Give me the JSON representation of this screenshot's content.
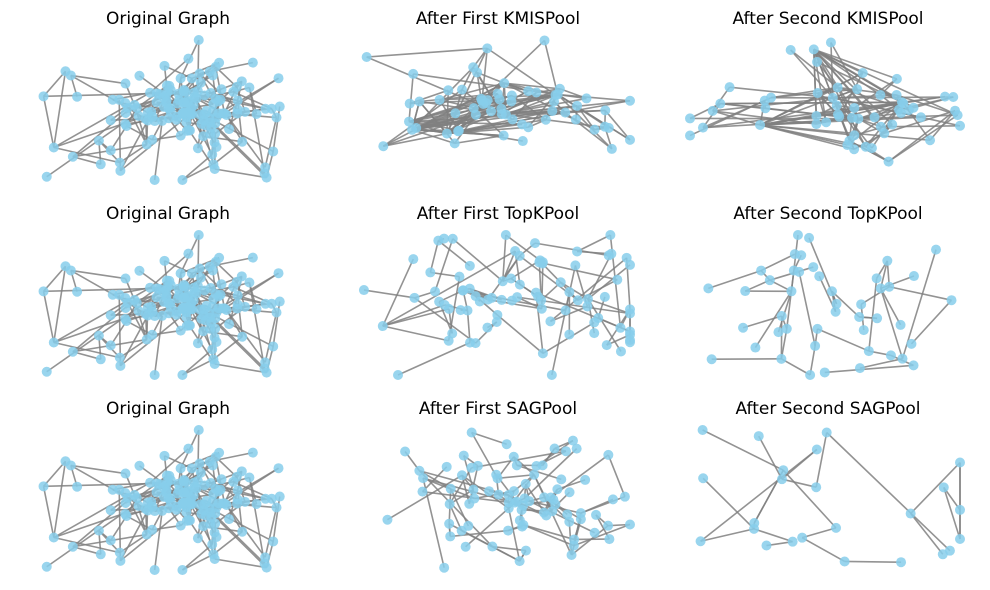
{
  "panels": [
    {
      "title": "Original Graph"
    },
    {
      "title": "After First KMISPool"
    },
    {
      "title": "After Second KMISPool"
    },
    {
      "title": "Original Graph"
    },
    {
      "title": "After First TopKPool"
    },
    {
      "title": "After Second TopKPool"
    },
    {
      "title": "Original Graph"
    },
    {
      "title": "After First SAGPool"
    },
    {
      "title": "After Second SAGPool"
    }
  ]
}
